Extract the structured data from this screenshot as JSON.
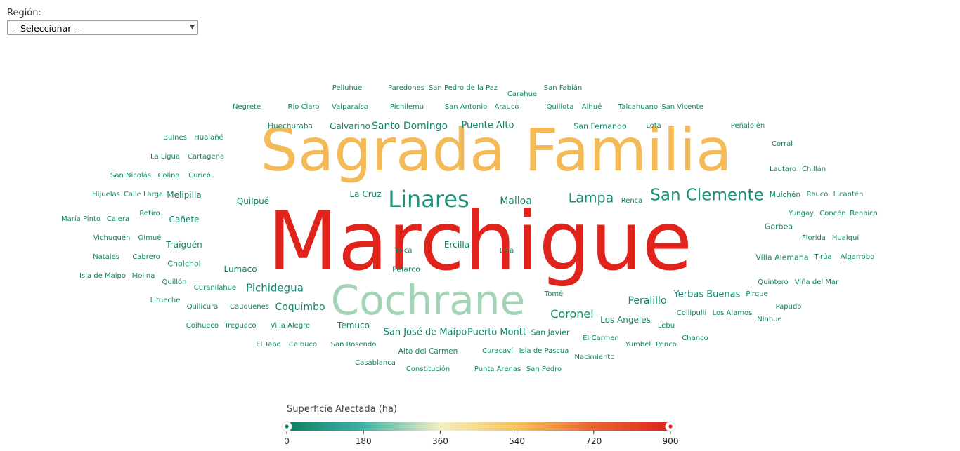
{
  "filter": {
    "label": "Región:",
    "selected": "-- Seleccionar --"
  },
  "legend": {
    "title": "Superficie Afectada (ha)"
  },
  "colors": {
    "scale": [
      "#0b7f62",
      "#3fb2a8",
      "#f5f0c2",
      "#f6c55c",
      "#e8622f",
      "#e0231b"
    ]
  },
  "chart_data": {
    "type": "wordcloud",
    "value_label": "Superficie Afectada (ha)",
    "color_domain": [
      0,
      900
    ],
    "color_ticks": [
      0,
      180,
      360,
      540,
      720,
      900
    ],
    "words": [
      {
        "text": "Marchigue",
        "value": 900
      },
      {
        "text": "Sagrada Familia",
        "value": 560
      },
      {
        "text": "Cochrane",
        "value": 280
      },
      {
        "text": "Linares",
        "value": 60
      },
      {
        "text": "San Clemente",
        "value": 55
      },
      {
        "text": "Lampa",
        "value": 45
      },
      {
        "text": "Coronel",
        "value": 40
      },
      {
        "text": "Malloa",
        "value": 35
      },
      {
        "text": "Pichidegua",
        "value": 32
      },
      {
        "text": "Coquimbo",
        "value": 30
      },
      {
        "text": "Peralillo",
        "value": 28
      },
      {
        "text": "Santo Domingo",
        "value": 26
      },
      {
        "text": "Puente Alto",
        "value": 24
      },
      {
        "text": "Puerto Montt",
        "value": 24
      },
      {
        "text": "San José de Maipo",
        "value": 22
      },
      {
        "text": "Yerbas Buenas",
        "value": 22
      },
      {
        "text": "Los Angeles",
        "value": 21
      },
      {
        "text": "San Fernando",
        "value": 18
      },
      {
        "text": "Ercilla",
        "value": 18
      },
      {
        "text": "Galvarino",
        "value": 18
      },
      {
        "text": "Traiguén",
        "value": 17
      },
      {
        "text": "Melipilla",
        "value": 17
      },
      {
        "text": "La Cruz",
        "value": 17
      },
      {
        "text": "Temuco",
        "value": 17
      },
      {
        "text": "Cañete",
        "value": 17
      },
      {
        "text": "Villa Alemana",
        "value": 16
      },
      {
        "text": "Lumaco",
        "value": 16
      },
      {
        "text": "Quilpué",
        "value": 16
      },
      {
        "text": "San Javier",
        "value": 15
      },
      {
        "text": "Gorbea",
        "value": 15
      },
      {
        "text": "Pelarco",
        "value": 15
      },
      {
        "text": "Huechuraba",
        "value": 14
      },
      {
        "text": "Cholchol",
        "value": 14
      },
      {
        "text": "Alto del Carmen",
        "value": 14
      },
      {
        "text": "Mulchén",
        "value": 14
      },
      {
        "text": "San Antonio",
        "value": 13
      },
      {
        "text": "Pichilemu",
        "value": 13
      },
      {
        "text": "Valparaíso",
        "value": 13
      },
      {
        "text": "Talcahuano",
        "value": 13
      },
      {
        "text": "San Vicente",
        "value": 13
      },
      {
        "text": "Lautaro",
        "value": 13
      },
      {
        "text": "Chillán",
        "value": 13
      },
      {
        "text": "Pelluhue",
        "value": 12
      },
      {
        "text": "Paredones",
        "value": 12
      },
      {
        "text": "San Pedro de la Paz",
        "value": 12
      },
      {
        "text": "Carahue",
        "value": 12
      },
      {
        "text": "San Fabián",
        "value": 12
      },
      {
        "text": "Negrete",
        "value": 12
      },
      {
        "text": "Río Claro",
        "value": 12
      },
      {
        "text": "Arauco",
        "value": 12
      },
      {
        "text": "Quillota",
        "value": 12
      },
      {
        "text": "Alhué",
        "value": 12
      },
      {
        "text": "Lota",
        "value": 12
      },
      {
        "text": "Peñalolén",
        "value": 12
      },
      {
        "text": "Bulnes",
        "value": 12
      },
      {
        "text": "Hualañé",
        "value": 12
      },
      {
        "text": "Corral",
        "value": 12
      },
      {
        "text": "La Ligua",
        "value": 12
      },
      {
        "text": "Cartagena",
        "value": 12
      },
      {
        "text": "San Nicolás",
        "value": 12
      },
      {
        "text": "Colina",
        "value": 12
      },
      {
        "text": "Curicó",
        "value": 12
      },
      {
        "text": "Hijuelas",
        "value": 12
      },
      {
        "text": "Calle Larga",
        "value": 12
      },
      {
        "text": "Renca",
        "value": 12
      },
      {
        "text": "Rauco",
        "value": 12
      },
      {
        "text": "Licantén",
        "value": 12
      },
      {
        "text": "Retiro",
        "value": 12
      },
      {
        "text": "Yungay",
        "value": 12
      },
      {
        "text": "Concón",
        "value": 12
      },
      {
        "text": "Renaico",
        "value": 12
      },
      {
        "text": "María Pinto",
        "value": 12
      },
      {
        "text": "Calera",
        "value": 12
      },
      {
        "text": "Vichuquén",
        "value": 12
      },
      {
        "text": "Olmué",
        "value": 12
      },
      {
        "text": "Florida",
        "value": 12
      },
      {
        "text": "Hualqui",
        "value": 12
      },
      {
        "text": "Natales",
        "value": 12
      },
      {
        "text": "Cabrero",
        "value": 12
      },
      {
        "text": "Talca",
        "value": 12
      },
      {
        "text": "Laja",
        "value": 12
      },
      {
        "text": "Tirúa",
        "value": 12
      },
      {
        "text": "Algarrobo",
        "value": 12
      },
      {
        "text": "Isla de Maipo",
        "value": 12
      },
      {
        "text": "Molina",
        "value": 12
      },
      {
        "text": "Quillón",
        "value": 12
      },
      {
        "text": "Curanilahue",
        "value": 12
      },
      {
        "text": "Quintero",
        "value": 12
      },
      {
        "text": "Viña del Mar",
        "value": 12
      },
      {
        "text": "Litueche",
        "value": 12
      },
      {
        "text": "Tomé",
        "value": 12
      },
      {
        "text": "Pirque",
        "value": 12
      },
      {
        "text": "Quilicura",
        "value": 12
      },
      {
        "text": "Cauquenes",
        "value": 12
      },
      {
        "text": "Papudo",
        "value": 12
      },
      {
        "text": "Collipulli",
        "value": 12
      },
      {
        "text": "Los Alamos",
        "value": 12
      },
      {
        "text": "Ninhue",
        "value": 12
      },
      {
        "text": "Coihueco",
        "value": 12
      },
      {
        "text": "Treguaco",
        "value": 12
      },
      {
        "text": "Villa Alegre",
        "value": 12
      },
      {
        "text": "Lebu",
        "value": 12
      },
      {
        "text": "El Carmen",
        "value": 12
      },
      {
        "text": "Chanco",
        "value": 12
      },
      {
        "text": "El Tabo",
        "value": 12
      },
      {
        "text": "Calbuco",
        "value": 12
      },
      {
        "text": "San Rosendo",
        "value": 12
      },
      {
        "text": "Curacaví",
        "value": 12
      },
      {
        "text": "Isla de Pascua",
        "value": 12
      },
      {
        "text": "Yumbel",
        "value": 12
      },
      {
        "text": "Penco",
        "value": 12
      },
      {
        "text": "Nacimiento",
        "value": 12
      },
      {
        "text": "Casablanca",
        "value": 12
      },
      {
        "text": "Constitución",
        "value": 12
      },
      {
        "text": "Punta Arenas",
        "value": 12
      },
      {
        "text": "San Pedro",
        "value": 12
      }
    ]
  }
}
